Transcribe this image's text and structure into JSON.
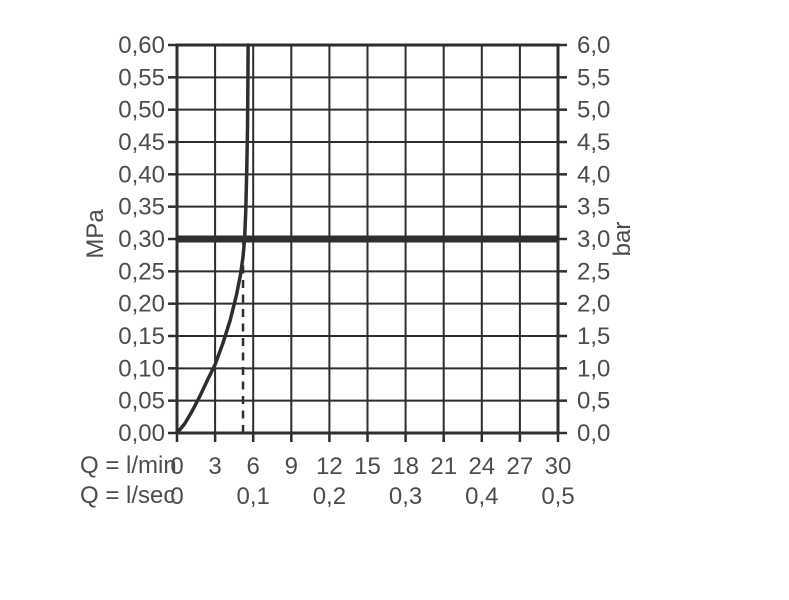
{
  "chart_data": {
    "type": "line",
    "title": "",
    "description": "Flow rate vs pressure diagram with flow limiter curve, thick reference line at 0.30 MPa / 3.0 bar and dashed vertical line at ~5.2 l/min",
    "grid": true,
    "x_axis": {
      "min": 0,
      "max": 30,
      "grid_step": 3
    },
    "y_axis_left": {
      "label": "MPa",
      "min": 0,
      "max": 0.6,
      "step": 0.05,
      "ticks": [
        {
          "v": 0.0,
          "text": "0,00"
        },
        {
          "v": 0.05,
          "text": "0,05"
        },
        {
          "v": 0.1,
          "text": "0,10"
        },
        {
          "v": 0.15,
          "text": "0,15"
        },
        {
          "v": 0.2,
          "text": "0,20"
        },
        {
          "v": 0.25,
          "text": "0,25"
        },
        {
          "v": 0.3,
          "text": "0,30"
        },
        {
          "v": 0.35,
          "text": "0,35"
        },
        {
          "v": 0.4,
          "text": "0,40"
        },
        {
          "v": 0.45,
          "text": "0,45"
        },
        {
          "v": 0.5,
          "text": "0,50"
        },
        {
          "v": 0.55,
          "text": "0,55"
        },
        {
          "v": 0.6,
          "text": "0,60"
        }
      ]
    },
    "y_axis_right": {
      "label": "bar",
      "min": 0,
      "max": 6,
      "step": 0.5,
      "ticks": [
        {
          "v": 0.0,
          "text": "0,0"
        },
        {
          "v": 0.05,
          "text": "0,5"
        },
        {
          "v": 0.1,
          "text": "1,0"
        },
        {
          "v": 0.15,
          "text": "1,5"
        },
        {
          "v": 0.2,
          "text": "2,0"
        },
        {
          "v": 0.25,
          "text": "2,5"
        },
        {
          "v": 0.3,
          "text": "3,0"
        },
        {
          "v": 0.35,
          "text": "3,5"
        },
        {
          "v": 0.4,
          "text": "4,0"
        },
        {
          "v": 0.45,
          "text": "4,5"
        },
        {
          "v": 0.5,
          "text": "5,0"
        },
        {
          "v": 0.55,
          "text": "5,5"
        },
        {
          "v": 0.6,
          "text": "6,0"
        }
      ]
    },
    "x_label_rows": [
      {
        "label": "Q = l/min",
        "ticks": [
          {
            "v": 0,
            "text": "0"
          },
          {
            "v": 3,
            "text": "3"
          },
          {
            "v": 6,
            "text": "6"
          },
          {
            "v": 9,
            "text": "9"
          },
          {
            "v": 12,
            "text": "12"
          },
          {
            "v": 15,
            "text": "15"
          },
          {
            "v": 18,
            "text": "18"
          },
          {
            "v": 21,
            "text": "21"
          },
          {
            "v": 24,
            "text": "24"
          },
          {
            "v": 27,
            "text": "27"
          },
          {
            "v": 30,
            "text": "30"
          }
        ]
      },
      {
        "label": "Q = l/sec",
        "ticks": [
          {
            "v": 0,
            "text": "0"
          },
          {
            "v": 6,
            "text": "0,1"
          },
          {
            "v": 12,
            "text": "0,2"
          },
          {
            "v": 18,
            "text": "0,3"
          },
          {
            "v": 24,
            "text": "0,4"
          },
          {
            "v": 30,
            "text": "0,5"
          }
        ]
      }
    ],
    "series": [
      {
        "name": "flow-rate-curve",
        "points": [
          [
            0,
            0
          ],
          [
            0.6,
            0.014
          ],
          [
            1.2,
            0.034
          ],
          [
            1.8,
            0.057
          ],
          [
            2.4,
            0.082
          ],
          [
            3.0,
            0.106
          ],
          [
            3.6,
            0.138
          ],
          [
            4.2,
            0.175
          ],
          [
            4.7,
            0.215
          ],
          [
            5.0,
            0.245
          ],
          [
            5.2,
            0.272
          ],
          [
            5.32,
            0.3
          ],
          [
            5.42,
            0.345
          ],
          [
            5.5,
            0.41
          ],
          [
            5.55,
            0.47
          ],
          [
            5.58,
            0.54
          ],
          [
            5.6,
            0.6
          ]
        ]
      }
    ],
    "reference_lines": {
      "operating_pressure": {
        "mpa": 0.3,
        "bar": 3.0,
        "style": "thick-horizontal"
      },
      "flow_at_operating_pressure": {
        "lmin": 5.2,
        "from_mpa": 0,
        "to_mpa": 0.3,
        "style": "dashed-vertical"
      }
    },
    "colors": {
      "grid": "#2e2e2e",
      "curve": "#2e2e2e",
      "reference": "#2e2e2e",
      "text": "#4c4c4c",
      "background": "#ffffff"
    }
  }
}
